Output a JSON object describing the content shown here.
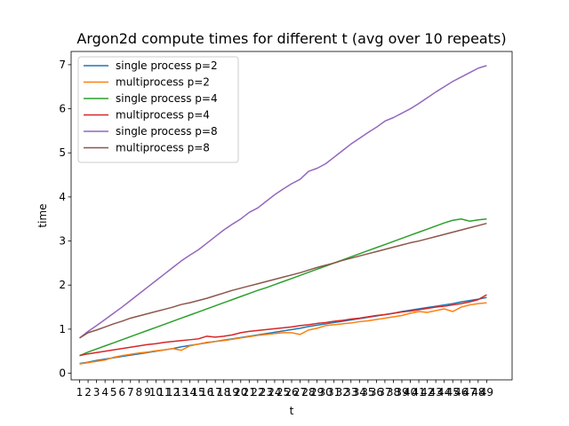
{
  "chart_data": {
    "type": "line",
    "title": "Argon2d compute times for different t (avg over 10 repeats)",
    "xlabel": "t",
    "ylabel": "time",
    "x": [
      1,
      2,
      3,
      4,
      5,
      6,
      7,
      8,
      9,
      10,
      11,
      12,
      13,
      14,
      15,
      16,
      17,
      18,
      19,
      20,
      21,
      22,
      23,
      24,
      25,
      26,
      27,
      28,
      29,
      30,
      31,
      32,
      33,
      34,
      35,
      36,
      37,
      38,
      39,
      40,
      41,
      42,
      43,
      44,
      45,
      46,
      47,
      48,
      49
    ],
    "xlim": [
      0,
      52
    ],
    "ylim": [
      -0.15,
      7.3
    ],
    "yticks": [
      0,
      1,
      2,
      3,
      4,
      5,
      6,
      7
    ],
    "grid": false,
    "legend_position": "top-left",
    "series": [
      {
        "name": "single process p=2",
        "color": "#1f77b4",
        "values": [
          0.22,
          0.25,
          0.29,
          0.32,
          0.35,
          0.38,
          0.41,
          0.44,
          0.47,
          0.5,
          0.53,
          0.56,
          0.6,
          0.63,
          0.66,
          0.69,
          0.72,
          0.75,
          0.78,
          0.81,
          0.84,
          0.87,
          0.9,
          0.93,
          0.96,
          0.99,
          1.02,
          1.06,
          1.09,
          1.12,
          1.15,
          1.18,
          1.21,
          1.24,
          1.27,
          1.3,
          1.33,
          1.36,
          1.4,
          1.43,
          1.46,
          1.49,
          1.52,
          1.55,
          1.58,
          1.62,
          1.65,
          1.68,
          1.72
        ]
      },
      {
        "name": "multiprocess p=2",
        "color": "#ff7f0e",
        "values": [
          0.21,
          0.24,
          0.27,
          0.3,
          0.36,
          0.4,
          0.43,
          0.46,
          0.48,
          0.51,
          0.53,
          0.56,
          0.52,
          0.62,
          0.66,
          0.7,
          0.72,
          0.74,
          0.77,
          0.8,
          0.83,
          0.86,
          0.88,
          0.9,
          0.92,
          0.92,
          0.88,
          0.98,
          1.02,
          1.08,
          1.1,
          1.12,
          1.14,
          1.17,
          1.19,
          1.22,
          1.25,
          1.28,
          1.31,
          1.36,
          1.4,
          1.38,
          1.42,
          1.46,
          1.4,
          1.5,
          1.55,
          1.58,
          1.6
        ]
      },
      {
        "name": "single process p=4",
        "color": "#2ca02c",
        "values": [
          0.4,
          0.48,
          0.55,
          0.62,
          0.69,
          0.76,
          0.83,
          0.9,
          0.97,
          1.04,
          1.11,
          1.18,
          1.25,
          1.32,
          1.39,
          1.46,
          1.53,
          1.6,
          1.67,
          1.74,
          1.81,
          1.88,
          1.94,
          2.01,
          2.08,
          2.15,
          2.22,
          2.29,
          2.36,
          2.43,
          2.5,
          2.57,
          2.64,
          2.71,
          2.78,
          2.85,
          2.92,
          2.99,
          3.06,
          3.13,
          3.2,
          3.27,
          3.34,
          3.41,
          3.47,
          3.5,
          3.45,
          3.48,
          3.5
        ]
      },
      {
        "name": "multiprocess p=4",
        "color": "#d62728",
        "values": [
          0.4,
          0.44,
          0.47,
          0.5,
          0.53,
          0.56,
          0.59,
          0.62,
          0.65,
          0.67,
          0.7,
          0.72,
          0.74,
          0.76,
          0.78,
          0.84,
          0.82,
          0.84,
          0.87,
          0.92,
          0.95,
          0.97,
          0.99,
          1.01,
          1.03,
          1.05,
          1.08,
          1.1,
          1.13,
          1.15,
          1.18,
          1.2,
          1.23,
          1.25,
          1.28,
          1.31,
          1.33,
          1.36,
          1.39,
          1.41,
          1.44,
          1.47,
          1.5,
          1.52,
          1.55,
          1.58,
          1.62,
          1.67,
          1.78
        ]
      },
      {
        "name": "single process p=8",
        "color": "#9467bd",
        "values": [
          0.8,
          0.95,
          1.08,
          1.22,
          1.36,
          1.5,
          1.65,
          1.8,
          1.95,
          2.1,
          2.25,
          2.4,
          2.55,
          2.68,
          2.8,
          2.95,
          3.1,
          3.25,
          3.38,
          3.5,
          3.65,
          3.75,
          3.9,
          4.05,
          4.18,
          4.3,
          4.4,
          4.58,
          4.65,
          4.75,
          4.9,
          5.05,
          5.2,
          5.33,
          5.46,
          5.58,
          5.72,
          5.8,
          5.9,
          6.0,
          6.12,
          6.25,
          6.38,
          6.5,
          6.62,
          6.72,
          6.82,
          6.92,
          6.98
        ]
      },
      {
        "name": "multiprocess p=8",
        "color": "#8c564b",
        "values": [
          0.8,
          0.92,
          0.98,
          1.05,
          1.12,
          1.18,
          1.25,
          1.3,
          1.35,
          1.4,
          1.45,
          1.5,
          1.56,
          1.6,
          1.65,
          1.7,
          1.76,
          1.82,
          1.88,
          1.93,
          1.98,
          2.03,
          2.08,
          2.13,
          2.18,
          2.23,
          2.28,
          2.34,
          2.4,
          2.45,
          2.5,
          2.56,
          2.61,
          2.66,
          2.71,
          2.76,
          2.81,
          2.86,
          2.91,
          2.96,
          3.0,
          3.05,
          3.1,
          3.15,
          3.2,
          3.25,
          3.3,
          3.35,
          3.4
        ]
      }
    ]
  }
}
